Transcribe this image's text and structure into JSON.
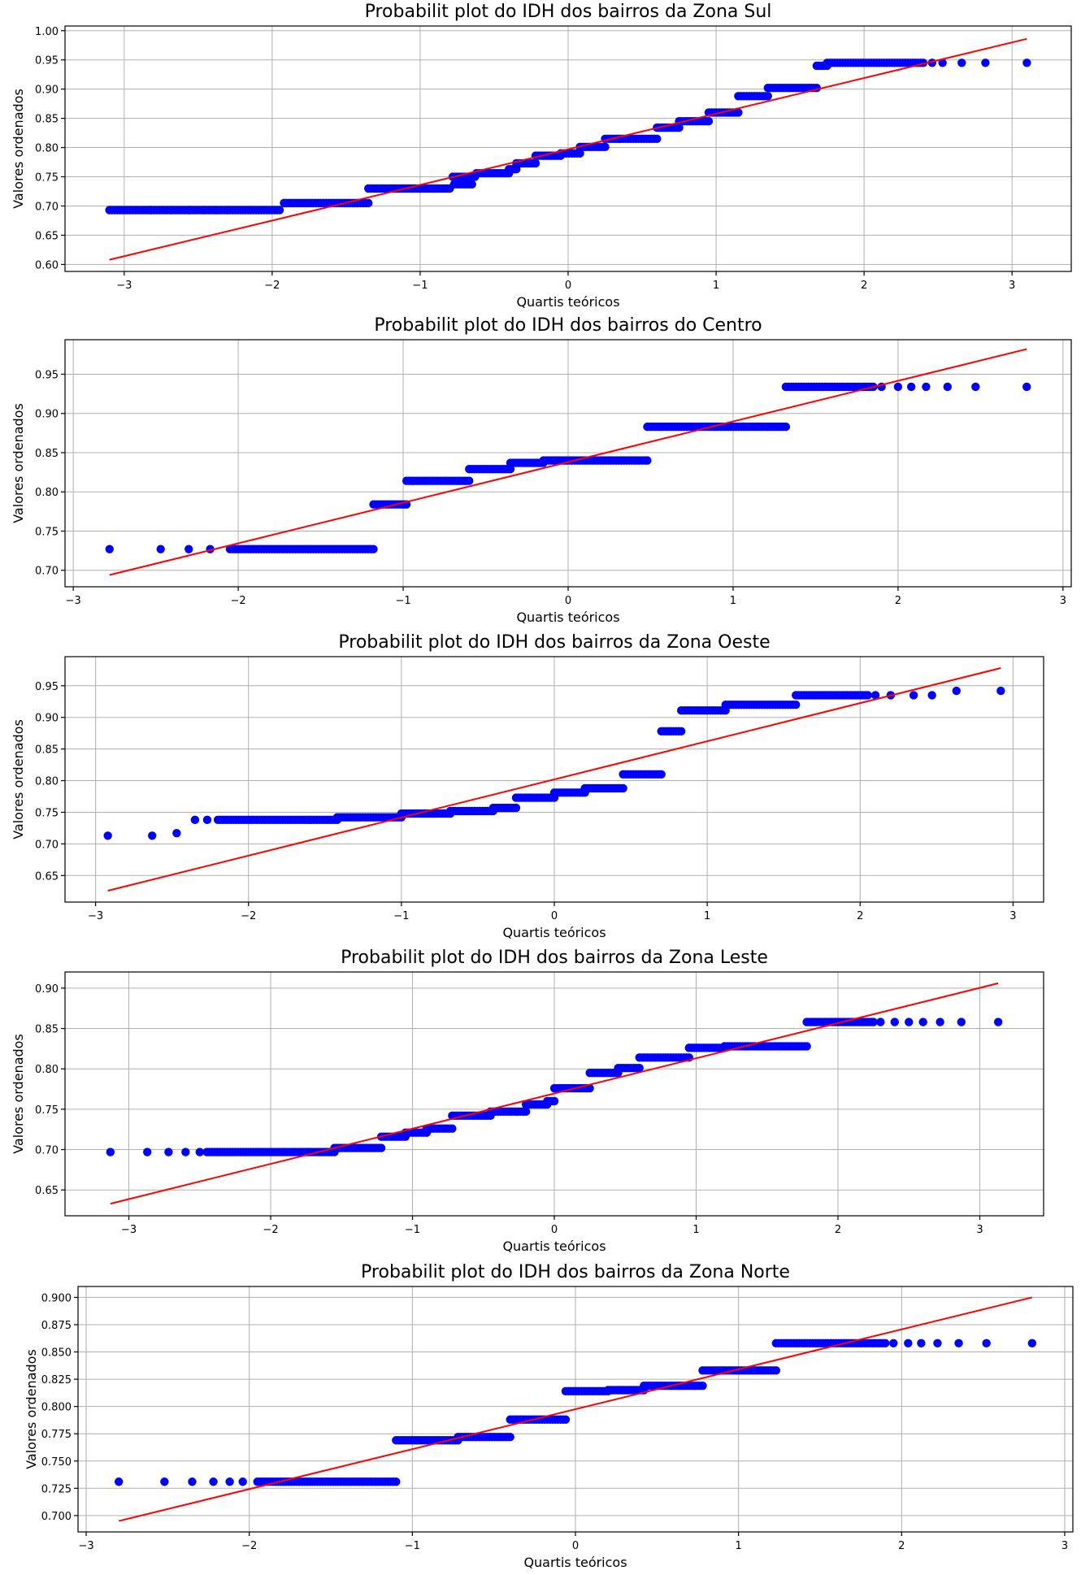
{
  "chart_data": [
    {
      "type": "scatter",
      "title": "Probabilit plot do IDH dos bairros da Zona Sul",
      "xlabel": "Quartis teóricos",
      "ylabel": "Valores ordenados",
      "xlim": [
        -3.4,
        3.4
      ],
      "ylim": [
        0.588,
        1.008
      ],
      "xticks": [
        "−3",
        "−2",
        "−1",
        "0",
        "1",
        "2",
        "3"
      ],
      "xtick_values": [
        -3,
        -2,
        -1,
        0,
        1,
        2,
        3
      ],
      "yticks": [
        "0.60",
        "0.65",
        "0.70",
        "0.75",
        "0.80",
        "0.85",
        "0.90",
        "0.95",
        "1.00"
      ],
      "ytick_values": [
        0.6,
        0.65,
        0.7,
        0.75,
        0.8,
        0.85,
        0.9,
        0.95,
        1.0
      ],
      "grid": true,
      "fit_line": {
        "x": [
          -3.1,
          3.1
        ],
        "y": [
          0.608,
          0.986
        ]
      },
      "steps": [
        {
          "x_from": -3.1,
          "x_to": -1.95,
          "y": 0.693
        },
        {
          "x_from": -1.92,
          "x_to": -1.35,
          "y": 0.705
        },
        {
          "x_from": -1.35,
          "x_to": -0.8,
          "y": 0.73
        },
        {
          "x_from": -0.77,
          "x_to": -0.65,
          "y": 0.737
        },
        {
          "x_from": -0.78,
          "x_to": -0.63,
          "y": 0.75
        },
        {
          "x_from": -0.62,
          "x_to": -0.4,
          "y": 0.756
        },
        {
          "x_from": -0.4,
          "x_to": -0.35,
          "y": 0.763
        },
        {
          "x_from": -0.35,
          "x_to": -0.22,
          "y": 0.773
        },
        {
          "x_from": -0.22,
          "x_to": -0.05,
          "y": 0.786
        },
        {
          "x_from": -0.05,
          "x_to": 0.08,
          "y": 0.79
        },
        {
          "x_from": 0.08,
          "x_to": 0.25,
          "y": 0.801
        },
        {
          "x_from": 0.25,
          "x_to": 0.6,
          "y": 0.815
        },
        {
          "x_from": 0.6,
          "x_to": 0.75,
          "y": 0.834
        },
        {
          "x_from": 0.75,
          "x_to": 0.95,
          "y": 0.845
        },
        {
          "x_from": 0.95,
          "x_to": 1.15,
          "y": 0.86
        },
        {
          "x_from": 1.15,
          "x_to": 1.35,
          "y": 0.888
        },
        {
          "x_from": 1.35,
          "x_to": 1.68,
          "y": 0.902
        },
        {
          "x_from": 1.68,
          "x_to": 1.75,
          "y": 0.94
        },
        {
          "x_from": 1.75,
          "x_to": 2.4,
          "y": 0.945
        }
      ],
      "tail_points": [
        {
          "x": -2.82,
          "y": 0.693
        },
        {
          "x": -2.68,
          "y": 0.693
        },
        {
          "x": -2.56,
          "y": 0.693
        },
        {
          "x": -2.46,
          "y": 0.693
        },
        {
          "x": -2.38,
          "y": 0.693
        },
        {
          "x": -2.3,
          "y": 0.693
        },
        {
          "x": 2.46,
          "y": 0.945
        },
        {
          "x": 2.53,
          "y": 0.945
        },
        {
          "x": 2.66,
          "y": 0.945
        },
        {
          "x": 2.82,
          "y": 0.945
        },
        {
          "x": 3.1,
          "y": 0.945
        }
      ]
    },
    {
      "type": "scatter",
      "title": "Probabilit plot do IDH dos bairros do Centro",
      "xlabel": "Quartis teóricos",
      "ylabel": "Valores ordenados",
      "xlim": [
        -3.05,
        3.05
      ],
      "ylim": [
        0.679,
        0.994
      ],
      "xticks": [
        "−3",
        "−2",
        "−1",
        "0",
        "1",
        "2",
        "3"
      ],
      "xtick_values": [
        -3,
        -2,
        -1,
        0,
        1,
        2,
        3
      ],
      "yticks": [
        "0.70",
        "0.75",
        "0.80",
        "0.85",
        "0.90",
        "0.95"
      ],
      "ytick_values": [
        0.7,
        0.75,
        0.8,
        0.85,
        0.9,
        0.95
      ],
      "grid": true,
      "fit_line": {
        "x": [
          -2.78,
          2.78
        ],
        "y": [
          0.694,
          0.982
        ]
      },
      "steps": [
        {
          "x_from": -2.05,
          "x_to": -1.18,
          "y": 0.727
        },
        {
          "x_from": -1.18,
          "x_to": -0.98,
          "y": 0.784
        },
        {
          "x_from": -0.98,
          "x_to": -0.6,
          "y": 0.814
        },
        {
          "x_from": -0.6,
          "x_to": -0.35,
          "y": 0.829
        },
        {
          "x_from": -0.35,
          "x_to": -0.15,
          "y": 0.837
        },
        {
          "x_from": -0.15,
          "x_to": 0.48,
          "y": 0.84
        },
        {
          "x_from": 0.48,
          "x_to": 1.32,
          "y": 0.883
        },
        {
          "x_from": 1.32,
          "x_to": 1.85,
          "y": 0.934
        }
      ],
      "tail_points": [
        {
          "x": -2.78,
          "y": 0.727
        },
        {
          "x": -2.47,
          "y": 0.727
        },
        {
          "x": -2.3,
          "y": 0.727
        },
        {
          "x": -2.17,
          "y": 0.727
        },
        {
          "x": 1.9,
          "y": 0.934
        },
        {
          "x": 2.0,
          "y": 0.934
        },
        {
          "x": 2.08,
          "y": 0.934
        },
        {
          "x": 2.17,
          "y": 0.934
        },
        {
          "x": 2.3,
          "y": 0.934
        },
        {
          "x": 2.47,
          "y": 0.934
        },
        {
          "x": 2.78,
          "y": 0.934
        }
      ]
    },
    {
      "type": "scatter",
      "title": "Probabilit plot do IDH dos bairros da Zona Oeste",
      "xlabel": "Quartis teóricos",
      "ylabel": "Valores ordenados",
      "xlim": [
        -3.2,
        3.2
      ],
      "ylim": [
        0.608,
        0.996
      ],
      "xticks": [
        "−3",
        "−2",
        "−1",
        "0",
        "1",
        "2",
        "3"
      ],
      "xtick_values": [
        -3,
        -2,
        -1,
        0,
        1,
        2,
        3
      ],
      "yticks": [
        "0.65",
        "0.70",
        "0.75",
        "0.80",
        "0.85",
        "0.90",
        "0.95"
      ],
      "ytick_values": [
        0.65,
        0.7,
        0.75,
        0.8,
        0.85,
        0.9,
        0.95
      ],
      "grid": true,
      "fit_line": {
        "x": [
          -2.92,
          2.92
        ],
        "y": [
          0.626,
          0.978
        ]
      },
      "steps": [
        {
          "x_from": -2.2,
          "x_to": -1.42,
          "y": 0.738
        },
        {
          "x_from": -1.42,
          "x_to": -1.0,
          "y": 0.742
        },
        {
          "x_from": -1.0,
          "x_to": -0.68,
          "y": 0.748
        },
        {
          "x_from": -0.68,
          "x_to": -0.4,
          "y": 0.752
        },
        {
          "x_from": -0.4,
          "x_to": -0.25,
          "y": 0.757
        },
        {
          "x_from": -0.25,
          "x_to": 0.0,
          "y": 0.773
        },
        {
          "x_from": 0.0,
          "x_to": 0.2,
          "y": 0.781
        },
        {
          "x_from": 0.2,
          "x_to": 0.45,
          "y": 0.788
        },
        {
          "x_from": 0.45,
          "x_to": 0.7,
          "y": 0.81
        },
        {
          "x_from": 0.7,
          "x_to": 0.83,
          "y": 0.878
        },
        {
          "x_from": 0.83,
          "x_to": 1.12,
          "y": 0.911
        },
        {
          "x_from": 1.12,
          "x_to": 1.58,
          "y": 0.92
        },
        {
          "x_from": 1.58,
          "x_to": 2.05,
          "y": 0.935
        }
      ],
      "tail_points": [
        {
          "x": -2.92,
          "y": 0.713
        },
        {
          "x": -2.63,
          "y": 0.713
        },
        {
          "x": -2.47,
          "y": 0.717
        },
        {
          "x": -2.35,
          "y": 0.738
        },
        {
          "x": -2.27,
          "y": 0.738
        },
        {
          "x": 2.1,
          "y": 0.935
        },
        {
          "x": 2.2,
          "y": 0.935
        },
        {
          "x": 2.35,
          "y": 0.935
        },
        {
          "x": 2.47,
          "y": 0.935
        },
        {
          "x": 2.63,
          "y": 0.942
        },
        {
          "x": 2.92,
          "y": 0.942
        }
      ]
    },
    {
      "type": "scatter",
      "title": "Probabilit plot do IDH dos bairros da Zona Leste",
      "xlabel": "Quartis teóricos",
      "ylabel": "Valores ordenados",
      "xlim": [
        -3.45,
        3.45
      ],
      "ylim": [
        0.618,
        0.92
      ],
      "xticks": [
        "−3",
        "−2",
        "−1",
        "0",
        "1",
        "2",
        "3"
      ],
      "xtick_values": [
        -3,
        -2,
        -1,
        0,
        1,
        2,
        3
      ],
      "yticks": [
        "0.65",
        "0.70",
        "0.75",
        "0.80",
        "0.85",
        "0.90"
      ],
      "ytick_values": [
        0.65,
        0.7,
        0.75,
        0.8,
        0.85,
        0.9
      ],
      "grid": true,
      "fit_line": {
        "x": [
          -3.13,
          3.13
        ],
        "y": [
          0.633,
          0.906
        ]
      },
      "steps": [
        {
          "x_from": -2.45,
          "x_to": -1.55,
          "y": 0.697
        },
        {
          "x_from": -1.55,
          "x_to": -1.22,
          "y": 0.702
        },
        {
          "x_from": -1.22,
          "x_to": -1.05,
          "y": 0.716
        },
        {
          "x_from": -1.05,
          "x_to": -0.9,
          "y": 0.721
        },
        {
          "x_from": -0.9,
          "x_to": -0.72,
          "y": 0.726
        },
        {
          "x_from": -0.72,
          "x_to": -0.45,
          "y": 0.742
        },
        {
          "x_from": -0.45,
          "x_to": -0.2,
          "y": 0.747
        },
        {
          "x_from": -0.2,
          "x_to": -0.05,
          "y": 0.756
        },
        {
          "x_from": -0.05,
          "x_to": 0.0,
          "y": 0.76
        },
        {
          "x_from": 0.0,
          "x_to": 0.25,
          "y": 0.776
        },
        {
          "x_from": 0.25,
          "x_to": 0.45,
          "y": 0.795
        },
        {
          "x_from": 0.45,
          "x_to": 0.6,
          "y": 0.801
        },
        {
          "x_from": 0.6,
          "x_to": 0.95,
          "y": 0.814
        },
        {
          "x_from": 0.95,
          "x_to": 1.2,
          "y": 0.826
        },
        {
          "x_from": 1.2,
          "x_to": 1.78,
          "y": 0.828
        },
        {
          "x_from": 1.78,
          "x_to": 2.25,
          "y": 0.858
        }
      ],
      "tail_points": [
        {
          "x": -3.13,
          "y": 0.697
        },
        {
          "x": -2.87,
          "y": 0.697
        },
        {
          "x": -2.72,
          "y": 0.697
        },
        {
          "x": -2.6,
          "y": 0.697
        },
        {
          "x": -2.5,
          "y": 0.697
        },
        {
          "x": 2.3,
          "y": 0.858
        },
        {
          "x": 2.4,
          "y": 0.858
        },
        {
          "x": 2.5,
          "y": 0.858
        },
        {
          "x": 2.6,
          "y": 0.858
        },
        {
          "x": 2.72,
          "y": 0.858
        },
        {
          "x": 2.87,
          "y": 0.858
        },
        {
          "x": 3.13,
          "y": 0.858
        }
      ]
    },
    {
      "type": "scatter",
      "title": "Probabilit plot do IDH dos bairros da Zona Norte",
      "xlabel": "Quartis teóricos",
      "ylabel": "Valores ordenados",
      "xlim": [
        -3.05,
        3.05
      ],
      "ylim": [
        0.685,
        0.91
      ],
      "xticks": [
        "−3",
        "−2",
        "−1",
        "0",
        "1",
        "2",
        "3"
      ],
      "xtick_values": [
        -3,
        -2,
        -1,
        0,
        1,
        2,
        3
      ],
      "yticks": [
        "0.700",
        "0.725",
        "0.750",
        "0.775",
        "0.800",
        "0.825",
        "0.850",
        "0.875",
        "0.900"
      ],
      "ytick_values": [
        0.7,
        0.725,
        0.75,
        0.775,
        0.8,
        0.825,
        0.85,
        0.875,
        0.9
      ],
      "grid": true,
      "fit_line": {
        "x": [
          -2.8,
          2.8
        ],
        "y": [
          0.695,
          0.9
        ]
      },
      "steps": [
        {
          "x_from": -1.95,
          "x_to": -1.1,
          "y": 0.731
        },
        {
          "x_from": -1.1,
          "x_to": -0.72,
          "y": 0.769
        },
        {
          "x_from": -0.72,
          "x_to": -0.4,
          "y": 0.772
        },
        {
          "x_from": -0.4,
          "x_to": -0.06,
          "y": 0.788
        },
        {
          "x_from": -0.06,
          "x_to": 0.2,
          "y": 0.814
        },
        {
          "x_from": 0.2,
          "x_to": 0.42,
          "y": 0.815
        },
        {
          "x_from": 0.42,
          "x_to": 0.78,
          "y": 0.819
        },
        {
          "x_from": 0.78,
          "x_to": 1.23,
          "y": 0.833
        },
        {
          "x_from": 1.23,
          "x_to": 1.9,
          "y": 0.858
        }
      ],
      "tail_points": [
        {
          "x": -2.8,
          "y": 0.731
        },
        {
          "x": -2.52,
          "y": 0.731
        },
        {
          "x": -2.35,
          "y": 0.731
        },
        {
          "x": -2.22,
          "y": 0.731
        },
        {
          "x": -2.12,
          "y": 0.731
        },
        {
          "x": -2.04,
          "y": 0.731
        },
        {
          "x": 1.95,
          "y": 0.858
        },
        {
          "x": 2.04,
          "y": 0.858
        },
        {
          "x": 2.12,
          "y": 0.858
        },
        {
          "x": 2.22,
          "y": 0.858
        },
        {
          "x": 2.35,
          "y": 0.858
        },
        {
          "x": 2.52,
          "y": 0.858
        },
        {
          "x": 2.8,
          "y": 0.858
        }
      ]
    }
  ],
  "colors": {
    "points": "#0000ff",
    "fit_line": "#ff0000",
    "grid": "#b0b0b0"
  }
}
